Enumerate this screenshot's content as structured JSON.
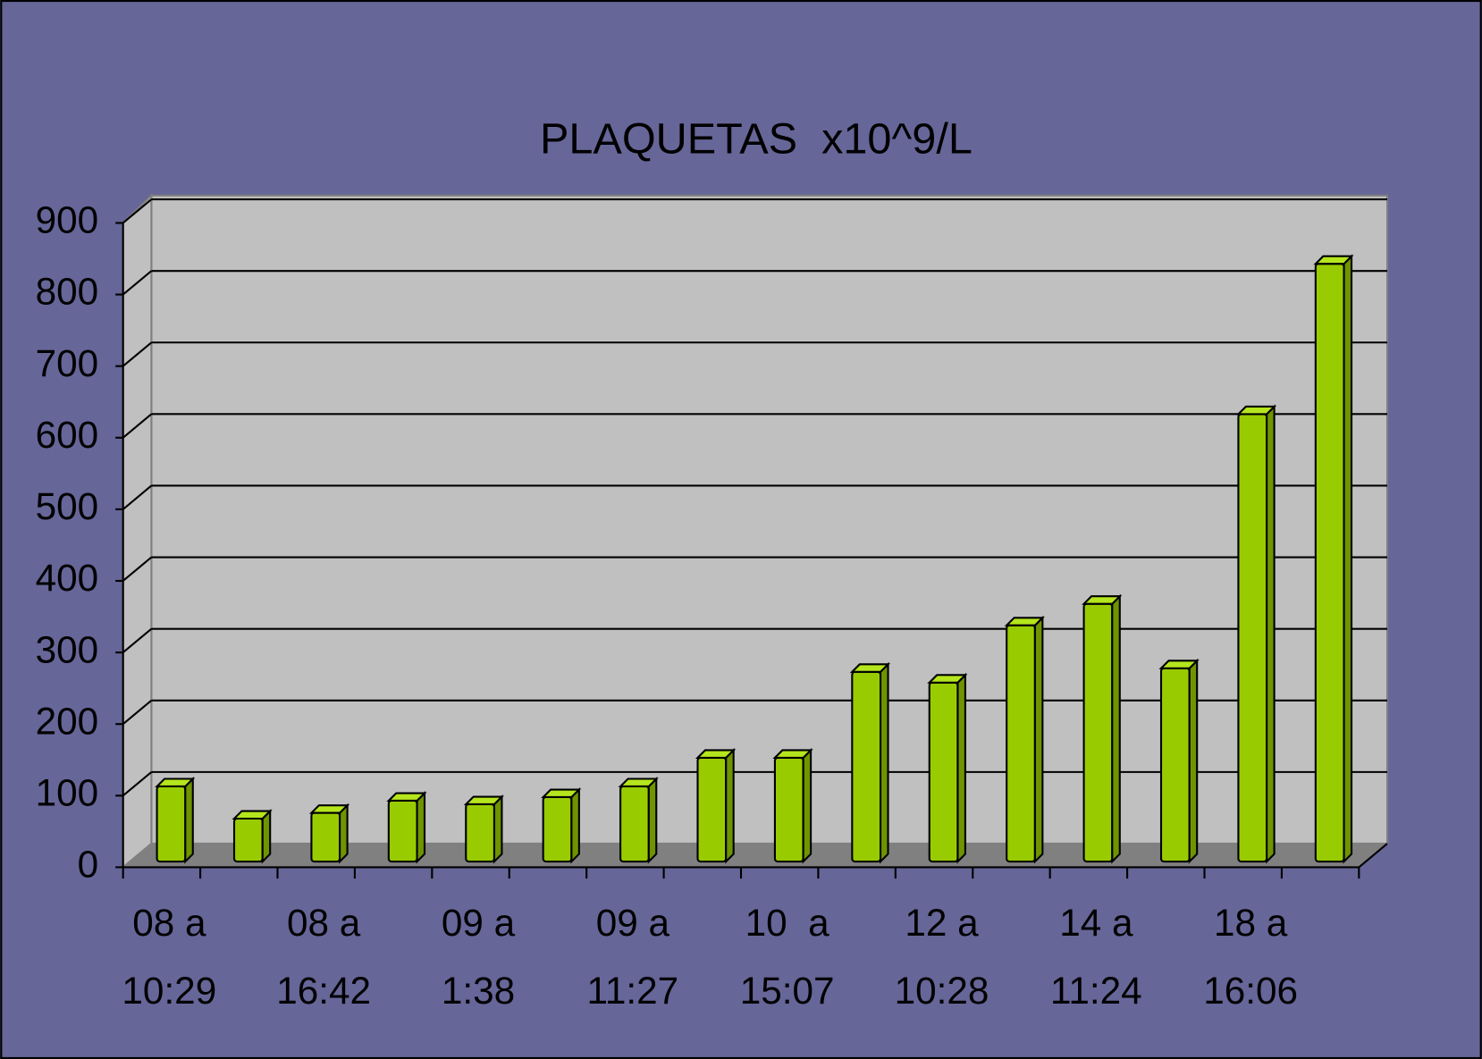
{
  "chart_data": {
    "type": "bar3d",
    "title": "PLAQUETAS  x10^9/L",
    "categories": [
      [
        "08 a",
        "10:29"
      ],
      null,
      [
        "08 a",
        "16:42"
      ],
      null,
      [
        "09 a",
        "1:38"
      ],
      null,
      [
        "09 a",
        "11:27"
      ],
      null,
      [
        "10  a",
        "15:07"
      ],
      null,
      [
        "12 a",
        "10:28"
      ],
      null,
      [
        "14 a",
        "11:24"
      ],
      null,
      [
        "18 a",
        "16:06"
      ],
      null
    ],
    "values": [
      105,
      60,
      68,
      85,
      80,
      90,
      105,
      145,
      145,
      265,
      250,
      330,
      360,
      270,
      625,
      835
    ],
    "color": "#99cc00",
    "ylim": [
      0,
      900
    ],
    "yticks": [
      0,
      100,
      200,
      300,
      400,
      500,
      600,
      700,
      800,
      900
    ],
    "grid": true
  }
}
